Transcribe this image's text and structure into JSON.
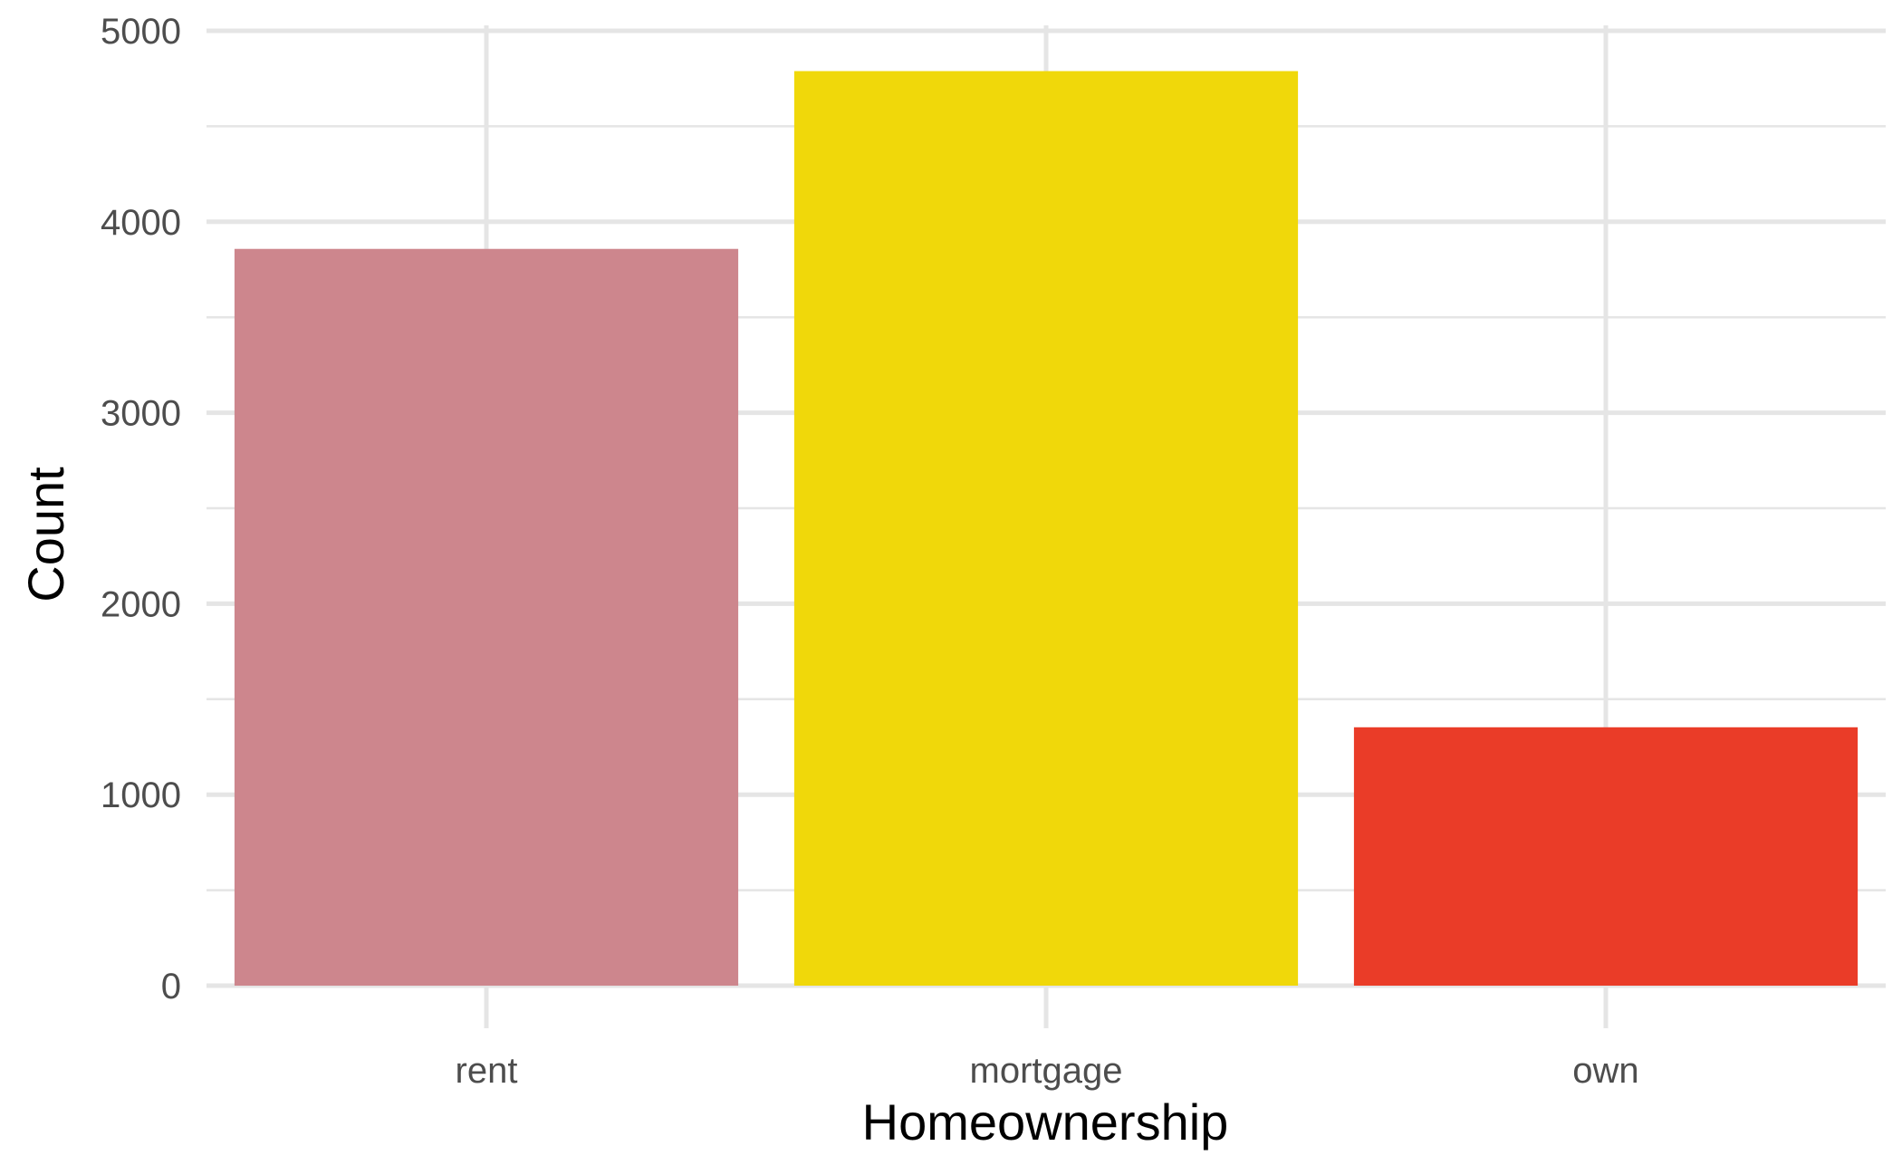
{
  "chart_data": {
    "type": "bar",
    "title": "",
    "xlabel": "Homeownership",
    "ylabel": "Count",
    "categories": [
      "rent",
      "mortgage",
      "own"
    ],
    "values": [
      3858,
      4789,
      1353
    ],
    "colors": [
      "#CD868D",
      "#F0D80A",
      "#EA3C28"
    ],
    "ylim": [
      0,
      5000
    ],
    "yticks": [
      0,
      1000,
      2000,
      3000,
      4000,
      5000
    ],
    "ytick_labels": [
      "0",
      "1000",
      "2000",
      "3000",
      "4000",
      "5000"
    ],
    "grid": true,
    "grid_color": "#E5E5E5",
    "legend": "none"
  }
}
